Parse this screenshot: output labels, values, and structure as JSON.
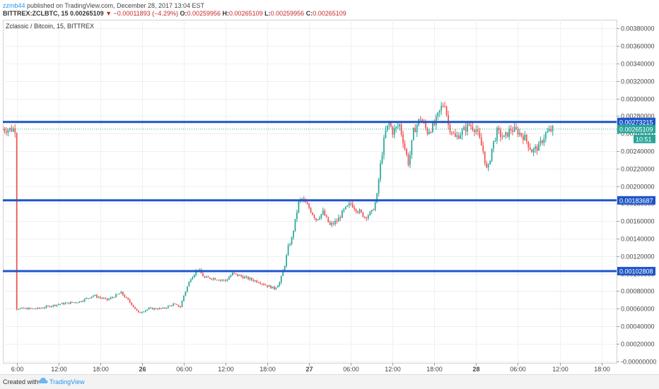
{
  "header": {
    "user": "zzmb44",
    "published": "published on TradingView.com, December 28, 2017 13:04 EST",
    "symbol": "BITTREX:ZCLBTC, 15",
    "last": "0.00265109",
    "change": "−0.00011893 (−4.29%)",
    "o_label": "O:",
    "o_val": "0.00259956",
    "h_label": "H:",
    "h_val": "0.00265109",
    "l_label": "L:",
    "l_val": "0.00259956",
    "c_label": "C:",
    "c_val": "0.00265109"
  },
  "footer": {
    "created": "Created with",
    "brand": "TradingView"
  },
  "colors": {
    "up": "#26a69a",
    "down": "#ef5350",
    "level": "#1e56c8",
    "price": "#26a69a"
  },
  "chart_data": {
    "type": "candlestick",
    "title": "Zclassic / Bitcoin, 15, BITTREX",
    "xlabel": "",
    "ylabel": "",
    "ylim": [
      -2e-05,
      0.0039
    ],
    "x_range_hours": [
      -2,
      75
    ],
    "y_ticks": [
      "0.00380000",
      "0.00360000",
      "0.00340000",
      "0.00320000",
      "0.00300000",
      "0.00280000",
      "0.00260000",
      "0.00240000",
      "0.00220000",
      "0.00200000",
      "0.00180000",
      "0.00160000",
      "0.00140000",
      "0.00120000",
      "0.00100000",
      "0.00080000",
      "0.00060000",
      "0.00040000",
      "0.00020000",
      "-0.00000000"
    ],
    "y_tick_values": [
      0.0038,
      0.0036,
      0.0034,
      0.0032,
      0.003,
      0.0028,
      0.0026,
      0.0024,
      0.0022,
      0.002,
      0.0018,
      0.0016,
      0.0014,
      0.0012,
      0.001,
      0.0008,
      0.0006,
      0.0004,
      0.0002,
      0
    ],
    "x_ticks": [
      {
        "label": "6:00",
        "h": 0,
        "bold": false
      },
      {
        "label": "12:00",
        "h": 6,
        "bold": false
      },
      {
        "label": "18:00",
        "h": 12,
        "bold": false
      },
      {
        "label": "26",
        "h": 18,
        "bold": true
      },
      {
        "label": "06:00",
        "h": 24,
        "bold": false
      },
      {
        "label": "12:00",
        "h": 30,
        "bold": false
      },
      {
        "label": "18:00",
        "h": 36,
        "bold": false
      },
      {
        "label": "27",
        "h": 42,
        "bold": true
      },
      {
        "label": "06:00",
        "h": 48,
        "bold": false
      },
      {
        "label": "12:00",
        "h": 54,
        "bold": false
      },
      {
        "label": "18:00",
        "h": 60,
        "bold": false
      },
      {
        "label": "28",
        "h": 66,
        "bold": true
      },
      {
        "label": "06:00",
        "h": 72,
        "bold": false
      },
      {
        "label": "12:00",
        "h": 78,
        "bold": false
      },
      {
        "label": "18:00",
        "h": 84,
        "bold": false
      }
    ],
    "levels": [
      {
        "value": 0.00273215,
        "label": "0.00273215"
      },
      {
        "value": 0.00183687,
        "label": "0.00183687"
      },
      {
        "value": 0.00102808,
        "label": "0.00102808"
      }
    ],
    "last_price": {
      "value": 0.00265109,
      "label": "0.00265109",
      "countdown": "10:51"
    },
    "price_path": [
      [
        0,
        0.0006
      ],
      [
        3,
        0.0006
      ],
      [
        6,
        0.00065
      ],
      [
        9,
        0.00068
      ],
      [
        11,
        0.00075
      ],
      [
        13,
        0.0007
      ],
      [
        15,
        0.00078
      ],
      [
        16.5,
        0.00065
      ],
      [
        17.5,
        0.00055
      ],
      [
        19,
        0.0006
      ],
      [
        21,
        0.0006
      ],
      [
        22.5,
        0.00065
      ],
      [
        23.5,
        0.00062
      ],
      [
        24,
        0.00075
      ],
      [
        25,
        0.00095
      ],
      [
        26,
        0.00105
      ],
      [
        27,
        0.00095
      ],
      [
        28,
        0.00095
      ],
      [
        30,
        0.00092
      ],
      [
        31,
        0.001
      ],
      [
        33,
        0.00095
      ],
      [
        35,
        0.0009
      ],
      [
        36,
        0.00086
      ],
      [
        37,
        0.00083
      ],
      [
        37.8,
        0.0009
      ],
      [
        38.5,
        0.0011
      ],
      [
        39,
        0.0013
      ],
      [
        39.5,
        0.0014
      ],
      [
        40,
        0.0016
      ],
      [
        40.5,
        0.00182
      ],
      [
        41,
        0.00185
      ],
      [
        42,
        0.00175
      ],
      [
        43,
        0.00162
      ],
      [
        44,
        0.0017
      ],
      [
        45,
        0.00155
      ],
      [
        46,
        0.0016
      ],
      [
        47,
        0.00172
      ],
      [
        48,
        0.0018
      ],
      [
        49,
        0.00172
      ],
      [
        50,
        0.00165
      ],
      [
        51,
        0.0017
      ],
      [
        51.7,
        0.00185
      ],
      [
        52.1,
        0.00215
      ],
      [
        52.6,
        0.00245
      ],
      [
        53,
        0.00262
      ],
      [
        53.5,
        0.00272
      ],
      [
        54,
        0.00262
      ],
      [
        55,
        0.0027
      ],
      [
        55.7,
        0.00245
      ],
      [
        56.3,
        0.00225
      ],
      [
        57,
        0.00262
      ],
      [
        58,
        0.00278
      ],
      [
        59,
        0.00262
      ],
      [
        60,
        0.0027
      ],
      [
        61,
        0.0029
      ],
      [
        61.5,
        0.00295
      ],
      [
        62,
        0.0027
      ],
      [
        63,
        0.00255
      ],
      [
        64,
        0.00262
      ],
      [
        65,
        0.0027
      ],
      [
        66,
        0.00265
      ],
      [
        67,
        0.0024
      ],
      [
        67.6,
        0.00215
      ],
      [
        68.3,
        0.00245
      ],
      [
        69,
        0.00262
      ],
      [
        70,
        0.00255
      ],
      [
        71,
        0.00265
      ],
      [
        72,
        0.00262
      ],
      [
        73,
        0.00255
      ],
      [
        74,
        0.0024
      ],
      [
        75,
        0.00245
      ],
      [
        76,
        0.0026
      ],
      [
        77,
        0.00265
      ]
    ]
  }
}
